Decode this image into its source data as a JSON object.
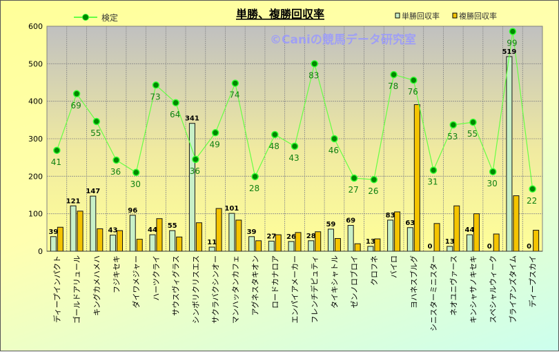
{
  "chart_data": {
    "type": "bar",
    "title": "単勝、複勝回収率",
    "watermark": "©Caniの競馬データ研究室",
    "ylim": [
      0,
      600
    ],
    "yticks": [
      0,
      100,
      200,
      300,
      400,
      500,
      600
    ],
    "grid": true,
    "legend_placement": "top",
    "categories": [
      "ディープインパクト",
      "ゴールドアリュール",
      "キングカメハメハ",
      "フジキセキ",
      "ダイワメジャー",
      "ハーツクライ",
      "サウスヴィグラス",
      "シンボリクリスエス",
      "サクラバクシンオー",
      "マンハッタンカフェ",
      "アグネスタキオン",
      "ロードカナロア",
      "エンパイアメーカー",
      "フレンチデピュティ",
      "タイキシャトル",
      "ゼンノロブロイ",
      "クロフネ",
      "バイロ",
      "ヨハネスブルグ",
      "シニスターミニスター",
      "ネオユニヴァース",
      "キンシャサノキセキ",
      "スペシャルウィーク",
      "ブライアンズタイム",
      "ディープスカイ"
    ],
    "series": [
      {
        "name": "単勝回収率",
        "type": "bar",
        "color": "#c8f0c8",
        "values": [
          39,
          121,
          147,
          43,
          96,
          44,
          55,
          341,
          11,
          101,
          39,
          27,
          26,
          28,
          59,
          69,
          13,
          83,
          63,
          0,
          13,
          44,
          0,
          519,
          0
        ]
      },
      {
        "name": "複勝回収率",
        "type": "bar",
        "color": "#f5c400",
        "values": [
          64,
          107,
          60,
          55,
          32,
          87,
          38,
          76,
          114,
          83,
          28,
          44,
          50,
          52,
          34,
          20,
          33,
          105,
          391,
          74,
          121,
          100,
          46,
          148,
          56
        ]
      },
      {
        "name": "検定",
        "type": "line",
        "color": "#66ff44",
        "marker_color": "#008800",
        "label_color": "#108010",
        "values": [
          41,
          69,
          55,
          36,
          30,
          73,
          64,
          36,
          49,
          74,
          28,
          48,
          43,
          83,
          46,
          27,
          26,
          78,
          76,
          31,
          53,
          55,
          30,
          99,
          22
        ],
        "plotted_on_primary_axis": [
          269,
          420,
          346,
          243,
          210,
          443,
          396,
          245,
          316,
          448,
          199,
          311,
          280,
          500,
          300,
          195,
          191,
          471,
          456,
          216,
          337,
          344,
          212,
          586,
          166
        ]
      }
    ]
  }
}
